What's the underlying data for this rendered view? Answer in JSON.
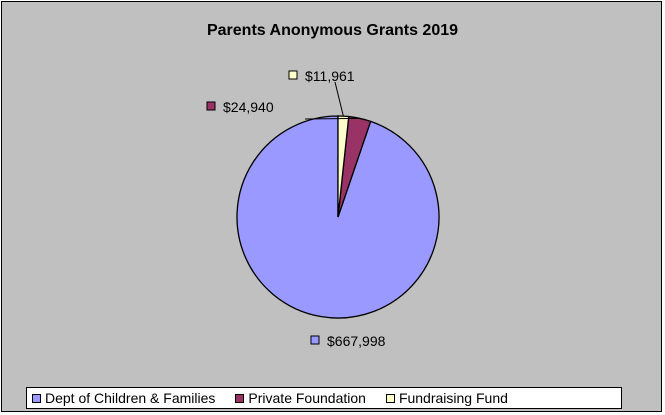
{
  "chart_data": {
    "type": "pie",
    "title": "Parents Anonymous Grants 2019",
    "categories": [
      "Dept of Children & Families",
      "Private Foundation",
      "Fundraising Fund"
    ],
    "values": [
      667998,
      24940,
      11961
    ],
    "value_labels": [
      "$667,998",
      "$24,940",
      "$11,961"
    ],
    "colors": [
      "#9999ff",
      "#993366",
      "#ffffcc"
    ],
    "legend_position": "bottom",
    "background_color": "#c0c0c0"
  }
}
